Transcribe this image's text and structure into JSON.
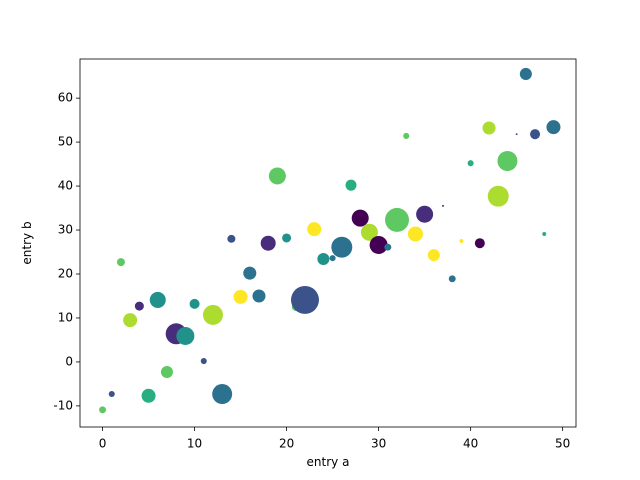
{
  "chart_data": {
    "type": "scatter",
    "xlabel": "entry a",
    "ylabel": "entry b",
    "x": [
      0,
      1,
      2,
      3,
      4,
      5,
      6,
      7,
      8,
      9,
      10,
      11,
      12,
      13,
      14,
      15,
      16,
      17,
      18,
      19,
      20,
      21,
      22,
      23,
      24,
      25,
      26,
      27,
      28,
      29,
      30,
      31,
      32,
      33,
      34,
      35,
      36,
      37,
      38,
      39,
      40,
      41,
      42,
      43,
      44,
      45,
      46,
      47,
      48,
      49
    ],
    "y": [
      -10.9,
      -7.3,
      22.7,
      9.5,
      12.7,
      -7.7,
      14.1,
      -2.3,
      6.4,
      5.9,
      13.2,
      0.2,
      10.7,
      -7.3,
      28,
      14.8,
      20.2,
      15,
      27,
      42.3,
      28.2,
      12.5,
      14.1,
      30.2,
      23.4,
      23.6,
      26.1,
      40.2,
      32.7,
      29.5,
      26.6,
      26.1,
      32.3,
      51.4,
      29.1,
      33.6,
      24.3,
      35.5,
      18.9,
      27.5,
      45.2,
      27,
      53.2,
      37.7,
      45.7,
      51.8,
      65.5,
      51.8,
      29.1,
      53.4
    ],
    "sizes": [
      25,
      19,
      33,
      102,
      42,
      102,
      133,
      75,
      228,
      168,
      52,
      19,
      207,
      207,
      33,
      102,
      88,
      88,
      117,
      150,
      42,
      33,
      406,
      102,
      75,
      19,
      228,
      63,
      150,
      150,
      168,
      25,
      298,
      19,
      117,
      150,
      75,
      2,
      25,
      8,
      19,
      52,
      88,
      228,
      207,
      2,
      75,
      52,
      8,
      102
    ],
    "colors": [
      "#5ec962",
      "#3b528b",
      "#5ec962",
      "#addc30",
      "#472d7b",
      "#28ae80",
      "#21918c",
      "#5ec962",
      "#472d7b",
      "#21918c",
      "#21918c",
      "#3b528b",
      "#addc30",
      "#2c728e",
      "#3b528b",
      "#fde725",
      "#2c728e",
      "#2c728e",
      "#472d7b",
      "#5ec962",
      "#21918c",
      "#5ec962",
      "#3b528b",
      "#fde725",
      "#21918c",
      "#2c728e",
      "#2c728e",
      "#28ae80",
      "#440154",
      "#addc30",
      "#440154",
      "#2c728e",
      "#5ec962",
      "#5ec962",
      "#fde725",
      "#472d7b",
      "#fde725",
      "#472d7b",
      "#2c728e",
      "#fde725",
      "#28ae80",
      "#440154",
      "#addc30",
      "#addc30",
      "#5ec962",
      "#3b528b",
      "#2c728e",
      "#3b528b",
      "#28ae80",
      "#2c728e"
    ],
    "xlim": [
      -2.45,
      51.45
    ],
    "ylim": [
      -14.8,
      68.9
    ],
    "xticks": [
      0,
      10,
      20,
      30,
      40,
      50
    ],
    "yticks": [
      -10,
      0,
      10,
      20,
      30,
      40,
      50,
      60
    ]
  }
}
